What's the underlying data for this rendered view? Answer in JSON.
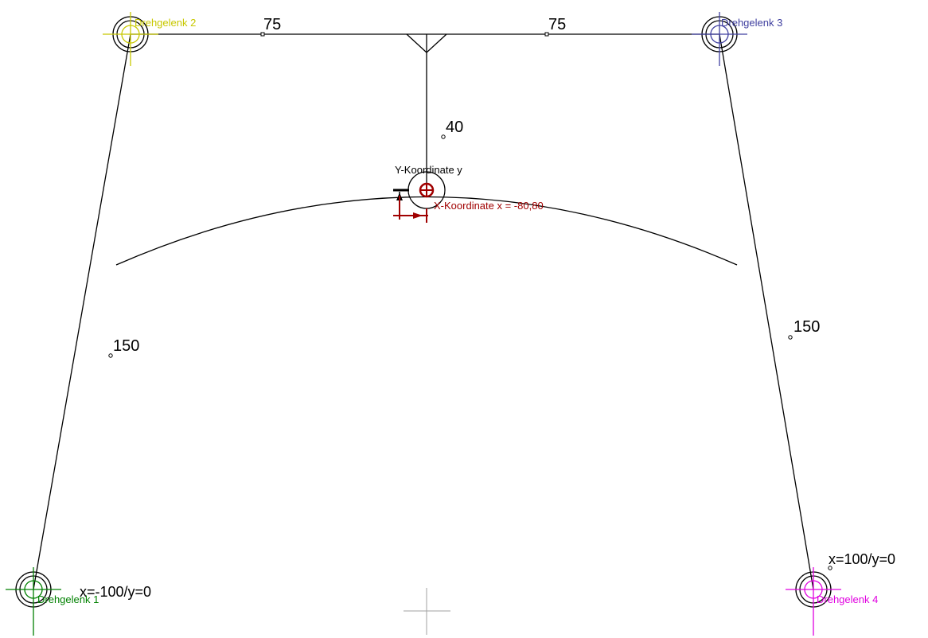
{
  "joints": {
    "j1": {
      "label": "Drehgelenk 1",
      "color": "#008000"
    },
    "j2": {
      "label": "Drehgelenk 2",
      "color": "#c8c800"
    },
    "j3": {
      "label": "Drehgelenk 3",
      "color": "#4040a0"
    },
    "j4": {
      "label": "Drehgelenk 4",
      "color": "#e000e0"
    }
  },
  "dimensions": {
    "top_left": "75",
    "top_right": "75",
    "vertical": "40",
    "left_link": "150",
    "right_link": "150"
  },
  "coordinates": {
    "left_base": "x=-100/y=0",
    "right_base": "x=100/y=0"
  },
  "coupler_point": {
    "y_label": "Y-Koordinate y",
    "x_label": "X-Koordinate x = -80,80",
    "color": "#a00000"
  }
}
